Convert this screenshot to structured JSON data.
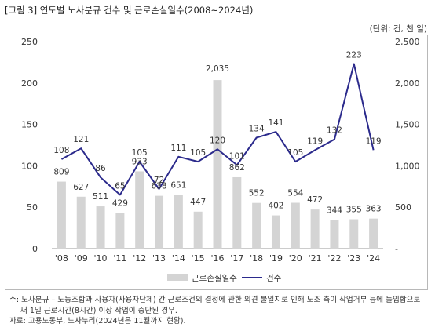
{
  "title": "[그림 3] 연도별 노사분규 건수 및 근로손실일수(2008~2024년)",
  "unit_note": "(단위: 건, 천 일)",
  "chart_data": {
    "type": "bar",
    "categories": [
      "'08",
      "'09",
      "'10",
      "'11",
      "'12",
      "'13",
      "'14",
      "'15",
      "'16",
      "'17",
      "'18",
      "'19",
      "'20",
      "'21",
      "'22",
      "'23",
      "'24"
    ],
    "series": [
      {
        "name": "근로손실일수",
        "kind": "bar",
        "axis": "right",
        "color": "#d4d4d4",
        "values": [
          809,
          627,
          511,
          429,
          933,
          638,
          651,
          447,
          2035,
          862,
          552,
          402,
          554,
          472,
          344,
          355,
          363
        ],
        "labels": [
          "809",
          "627",
          "511",
          "429",
          "933",
          "638",
          "651",
          "447",
          "2,035",
          "862",
          "552",
          "402",
          "554",
          "472",
          "344",
          "355",
          "363"
        ]
      },
      {
        "name": "건수",
        "kind": "line",
        "axis": "left",
        "color": "#2b2a8c",
        "values": [
          108,
          121,
          86,
          65,
          105,
          72,
          111,
          105,
          120,
          101,
          134,
          141,
          105,
          119,
          132,
          223,
          119
        ],
        "labels": [
          "108",
          "121",
          "86",
          "65",
          "105",
          "72",
          "111",
          "105",
          "120",
          "101",
          "134",
          "141",
          "105",
          "119",
          "132",
          "223",
          "119"
        ]
      }
    ],
    "ylim_left": [
      0,
      250
    ],
    "yticks_left": [
      "0",
      "50",
      "100",
      "150",
      "200",
      "250"
    ],
    "ylim_right": [
      0,
      2500
    ],
    "yticks_right": [
      "-",
      "500",
      "1,000",
      "1,500",
      "2,000",
      "2,500"
    ],
    "legend_position": "bottom",
    "grid": false
  },
  "notes": [
    "주: 노사분규 – 노동조합과 사용자(사용자단체) 간 근로조건의 결정에 관한 의견 불일치로 인해 노조 측이 작업거부 등에 돌입함으로",
    "써 1일 근로시간(8시간) 이상 작업이 중단된 경우.",
    "자료: 고용노동부, 노사누리(2024년은 11월까지 현황)."
  ]
}
